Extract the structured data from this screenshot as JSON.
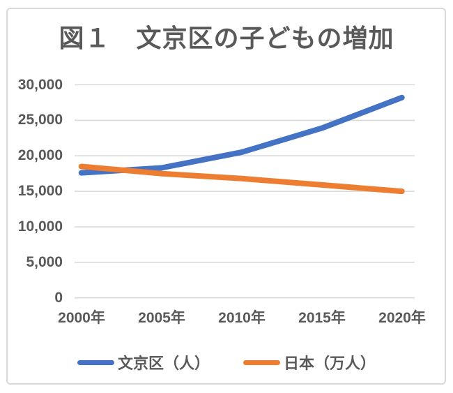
{
  "chart": {
    "title": "図１　文京区の子どもの増加",
    "y_ticks": [
      "30,000",
      "25,000",
      "20,000",
      "15,000",
      "10,000",
      "5,000",
      "0"
    ],
    "x_ticks": [
      "2000年",
      "2005年",
      "2010年",
      "2015年",
      "2020年"
    ],
    "colors": {
      "bunkyo_line": "#4472C4",
      "japan_line": "#ED7D31",
      "gridline": "#D9D9D9",
      "text": "#595959",
      "frame_border": "#D9D9D9"
    }
  },
  "chart_data": {
    "type": "line",
    "title": "図１　文京区の子どもの増加",
    "categories": [
      "2000年",
      "2005年",
      "2010年",
      "2015年",
      "2020年"
    ],
    "series": [
      {
        "name": "文京区（人）",
        "color": "#4472C4",
        "values": [
          17600,
          18300,
          20500,
          23900,
          28200
        ]
      },
      {
        "name": "日本（万人）",
        "color": "#ED7D31",
        "values": [
          18500,
          17500,
          16800,
          15900,
          15000
        ]
      }
    ],
    "xlabel": "",
    "ylabel": "",
    "ylim": [
      0,
      30000
    ],
    "y_tick_step": 5000,
    "grid": true,
    "legend_position": "bottom"
  }
}
